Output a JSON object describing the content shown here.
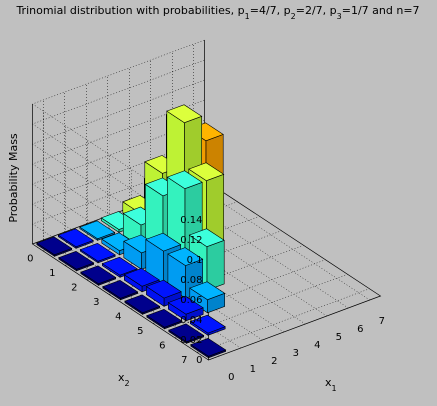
{
  "chart_data": {
    "type": "bar3d",
    "title": {
      "prefix": "Trinomial distribution with probabilities, p",
      "parts": [
        {
          "sub": "1",
          "text": "=4/7, p"
        },
        {
          "sub": "2",
          "text": "=2/7, p"
        },
        {
          "sub": "3",
          "text": "=1/7 and n=7"
        }
      ]
    },
    "xlabel": {
      "base": "x",
      "sub": "1"
    },
    "ylabel": {
      "base": "x",
      "sub": "2"
    },
    "zlabel": "Probability Mass",
    "n": 7,
    "p": [
      0.5714,
      0.2857,
      0.1429
    ],
    "x_ticks": [
      "0",
      "1",
      "2",
      "3",
      "4",
      "5",
      "6",
      "7"
    ],
    "y_ticks": [
      "0",
      "1",
      "2",
      "3",
      "4",
      "5",
      "6",
      "7"
    ],
    "z_ticks": [
      "0",
      "0.02",
      "0.04",
      "0.06",
      "0.08",
      "0.1",
      "0.12",
      "0.14"
    ],
    "zlim": [
      0,
      0.14
    ],
    "colormap": "jet",
    "grid": true,
    "values_note": "Bar height at (x1, x2) = 7!/(x1! x2! (7-x1-x2)!) p1^x1 p2^x2 p3^(7-x1-x2); cells with x1+x2>7 are empty."
  }
}
